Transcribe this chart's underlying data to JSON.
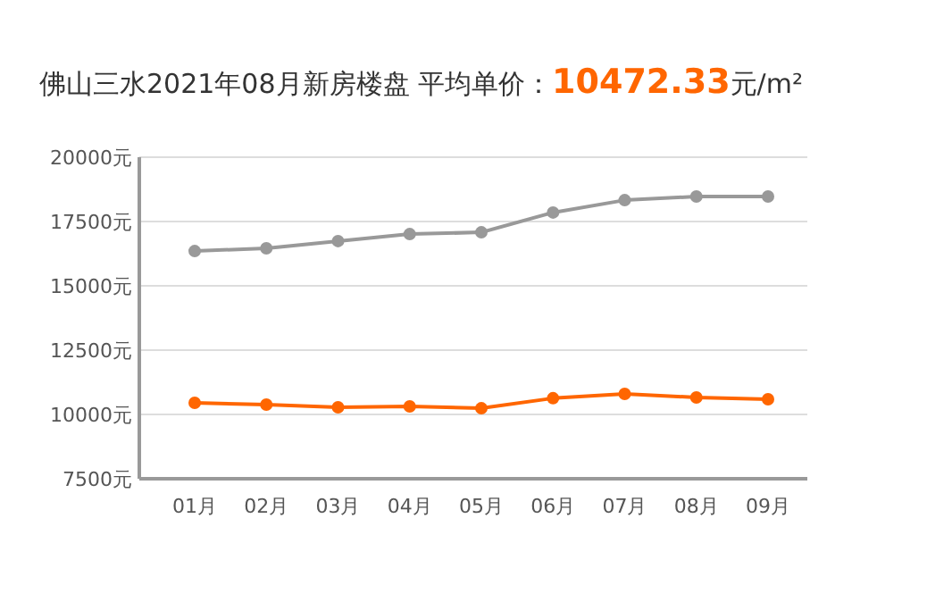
{
  "chart_data": {
    "type": "line",
    "title": "佛山三水2021年08月新房楼盘  平均单价：10472.33元/m²",
    "categories": [
      "01月",
      "02月",
      "03月",
      "04月",
      "05月",
      "06月",
      "07月",
      "08月",
      "09月"
    ],
    "series": [
      {
        "color": "#999999",
        "values": [
          16350,
          16460,
          16740,
          17010,
          17080,
          17850,
          18330,
          18470,
          18470
        ]
      },
      {
        "color": "#ff6600",
        "values": [
          10450,
          10380,
          10280,
          10310,
          10240,
          10630,
          10800,
          10660,
          10590
        ]
      }
    ],
    "ylim": [
      7500,
      20000
    ],
    "yticks": [
      {
        "value": 7500,
        "label": "7500元"
      },
      {
        "value": 10000,
        "label": "10000元"
      },
      {
        "value": 12500,
        "label": "12500元"
      },
      {
        "value": 15000,
        "label": "15000元"
      },
      {
        "value": 17500,
        "label": "17500元"
      },
      {
        "value": 20000,
        "label": "20000元"
      }
    ],
    "grid": "y",
    "marker": "circle",
    "line_style": "solid"
  }
}
